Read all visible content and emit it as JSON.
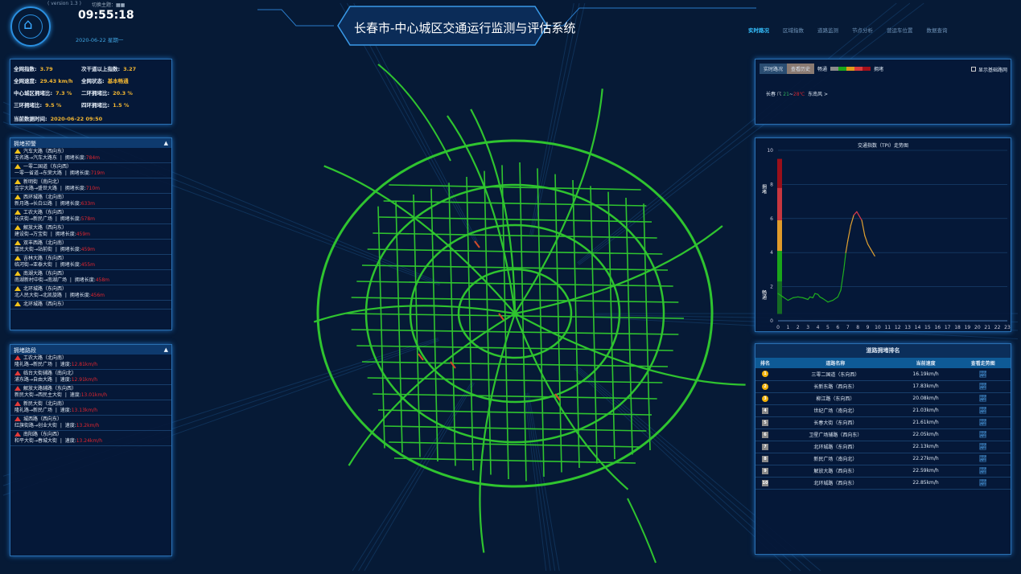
{
  "header": {
    "version": "( version 1.3 )",
    "theme_label": "切换主题：",
    "time": "09:55:18",
    "date": "2020-06-22 星期一",
    "title": "长春市-中心城区交通运行监测与评估系统"
  },
  "nav": {
    "tabs": [
      "实时路况",
      "区域指数",
      "道路监测",
      "节点分析",
      "营运车位置",
      "数据查询"
    ],
    "active": 0
  },
  "summary": {
    "items": [
      {
        "label": "全网指数:",
        "value": "3.79"
      },
      {
        "label": "次干道以上指数:",
        "value": "3.27"
      },
      {
        "label": "全网速度:",
        "value": "29.43 km/h"
      },
      {
        "label": "全网状态:",
        "value": "基本畅通"
      },
      {
        "label": "中心城区拥堵比:",
        "value": "7.3 %"
      },
      {
        "label": "二环拥堵比:",
        "value": "20.3 %"
      },
      {
        "label": "三环拥堵比:",
        "value": "9.5 %"
      },
      {
        "label": "四环拥堵比:",
        "value": "1.5 %"
      }
    ],
    "time_label": "当前数据时间:",
    "time_value": "2020-06-22 09:50"
  },
  "warning": {
    "title": "拥堵预警",
    "items": [
      {
        "road": "汽车大路（西向东）",
        "path": "无名路→汽车大路东",
        "len_label": "拥堵长度:",
        "len": "784m"
      },
      {
        "road": "一零二国道（东向西）",
        "path": "一零一省道→东荣大路",
        "len_label": "拥堵长度:",
        "len": "719m"
      },
      {
        "road": "新明街（南向北）",
        "path": "金宇大路→盛世大路",
        "len_label": "拥堵长度:",
        "len": "710m"
      },
      {
        "road": "西环城路（北向南）",
        "path": "新月路→长白公路",
        "len_label": "拥堵长度:",
        "len": "633m"
      },
      {
        "road": "工农大路（东向西）",
        "path": "长庆街→新民广场",
        "len_label": "拥堵长度:",
        "len": "578m"
      },
      {
        "road": "解放大路（西向东）",
        "path": "建设街→万宝街",
        "len_label": "拥堵长度:",
        "len": "459m"
      },
      {
        "road": "双丰西路（北向南）",
        "path": "富民大街→站前街",
        "len_label": "拥堵长度:",
        "len": "459m"
      },
      {
        "road": "吉林大路（东向西）",
        "path": "临河街→亚泰大街",
        "len_label": "拥堵长度:",
        "len": "455m"
      },
      {
        "road": "南湖大路（东向西）",
        "path": "南湖新村中街→南湖广场",
        "len_label": "拥堵长度:",
        "len": "458m"
      },
      {
        "road": "北环城路（东向西）",
        "path": "北人民大街→北凯旋路",
        "len_label": "拥堵长度:",
        "len": "456m"
      },
      {
        "road": "北环城路（西向东）",
        "path": "",
        "len_label": "",
        "len": ""
      }
    ]
  },
  "segments": {
    "title": "拥堵路段",
    "items": [
      {
        "road": "工农大路（北向南）",
        "path": "隆礼路→新民广场",
        "speed_label": "速度:",
        "speed": "12.81km/h"
      },
      {
        "road": "临台大街辅路（南向北）",
        "path": "浦东路→自由大路",
        "speed_label": "速度:",
        "speed": "12.91km/h"
      },
      {
        "road": "解放大路辅路（东向西）",
        "path": "新民大街→西民主大街",
        "speed_label": "速度:",
        "speed": "13.01km/h"
      },
      {
        "road": "新民大街（北向南）",
        "path": "隆礼路→新民广场",
        "speed_label": "速度:",
        "speed": "13.13km/h"
      },
      {
        "road": "城西路（西向东）",
        "path": "红旗街路→创业大街",
        "speed_label": "速度:",
        "speed": "13.2km/h"
      },
      {
        "road": "南阳路（东向西）",
        "path": "和平大街→春城大街",
        "speed_label": "速度:",
        "speed": "13.24km/h"
      }
    ]
  },
  "traffic_panel": {
    "btn_realtime": "实时路况",
    "btn_history": "查看历史",
    "legend_smooth": "畅通",
    "legend_jam": "拥堵",
    "legend_colors": [
      "#8a8a8a",
      "#1aa51a",
      "#e09a1a",
      "#d93a3a",
      "#a5101a"
    ],
    "checkbox_label": "显示基础路网",
    "checked": false,
    "city": "长春",
    "temp_low": "21",
    "temp_sep": "~",
    "temp_high": "28℃",
    "wind": "东南风 >",
    "weather_icon": "thunderstorm-icon"
  },
  "chart_data": {
    "type": "line",
    "title": "交通指数（TPI）走势图",
    "xlabel": "",
    "ylabel": "",
    "xlim": [
      0,
      23
    ],
    "ylim": [
      0,
      10
    ],
    "x_ticks": [
      0,
      1,
      2,
      3,
      4,
      5,
      6,
      7,
      8,
      9,
      10,
      11,
      12,
      13,
      14,
      15,
      16,
      17,
      18,
      19,
      20,
      21,
      22,
      23
    ],
    "y_ticks": [
      0,
      2,
      4,
      6,
      8,
      10
    ],
    "band_labels": {
      "jam": "拥堵",
      "smooth": "畅通"
    },
    "bands": [
      {
        "from": 0.4,
        "to": 2.3,
        "color": "#156b24"
      },
      {
        "from": 2.3,
        "to": 4.1,
        "color": "#1aa51a"
      },
      {
        "from": 4.1,
        "to": 5.9,
        "color": "#e09a2a"
      },
      {
        "from": 5.9,
        "to": 7.8,
        "color": "#c8363f"
      },
      {
        "from": 7.8,
        "to": 9.5,
        "color": "#9a0f1a"
      }
    ],
    "x": [
      0,
      0.5,
      1,
      1.5,
      2,
      2.5,
      3,
      3.2,
      3.5,
      3.7,
      4,
      4.2,
      4.5,
      5,
      5.5,
      6,
      6.3,
      6.6,
      6.8,
      7,
      7.3,
      7.6,
      7.9,
      8.1,
      8.4,
      8.7,
      9,
      9.3,
      9.7
    ],
    "values": [
      1.6,
      1.4,
      1.2,
      1.35,
      1.4,
      1.35,
      1.25,
      1.4,
      1.35,
      1.6,
      1.55,
      1.4,
      1.3,
      1.1,
      1.2,
      1.4,
      1.8,
      3.0,
      4.0,
      4.7,
      5.6,
      6.2,
      6.4,
      6.2,
      5.9,
      5.0,
      4.5,
      4.2,
      3.8
    ],
    "grid": true
  },
  "ranking": {
    "title": "道路拥堵排名",
    "columns": [
      "排名",
      "道路名称",
      "当前速度",
      "查看走势图"
    ],
    "rows": [
      {
        "rank": "1",
        "road": "三零二国道（东向西）",
        "speed": "16.19km/h"
      },
      {
        "rank": "2",
        "road": "长新东路（西向东）",
        "speed": "17.83km/h"
      },
      {
        "rank": "3",
        "road": "柳江路（东向西）",
        "speed": "20.08km/h"
      },
      {
        "rank": "4",
        "road": "世纪广场（南向北）",
        "speed": "21.03km/h"
      },
      {
        "rank": "5",
        "road": "长春大街（东向西）",
        "speed": "21.61km/h"
      },
      {
        "rank": "6",
        "road": "卫星广场辅路（西向东）",
        "speed": "22.05km/h"
      },
      {
        "rank": "7",
        "road": "北环城路（东向西）",
        "speed": "22.13km/h"
      },
      {
        "rank": "8",
        "road": "新民广场（南向北）",
        "speed": "22.27km/h"
      },
      {
        "rank": "9",
        "road": "解放大路（西向东）",
        "speed": "22.59km/h"
      },
      {
        "rank": "10",
        "road": "北环城路（西向东）",
        "speed": "22.85km/h"
      }
    ]
  },
  "colors": {
    "accent": "#35c1ff",
    "value": "#f2b632",
    "jam": "#e3262f",
    "road": "#2fd62f"
  }
}
